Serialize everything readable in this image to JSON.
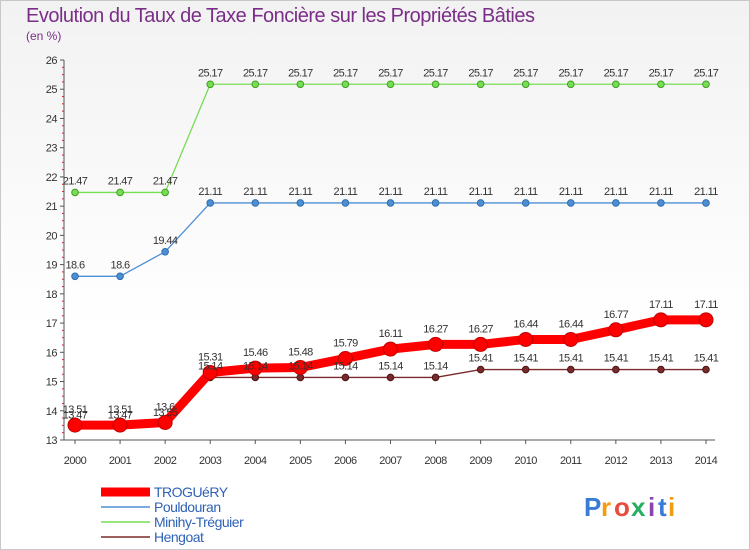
{
  "chart_data": {
    "type": "line",
    "title": "Evolution du Taux de Taxe Foncière sur les Propriétés Bâties",
    "ylabel": "(en %)",
    "xlabel": "",
    "ylim": [
      13,
      26
    ],
    "yticks": [
      "13",
      "14",
      "15",
      "16",
      "17",
      "18",
      "19",
      "20",
      "21",
      "22",
      "23",
      "24",
      "25",
      "26"
    ],
    "categories": [
      "2000",
      "2001",
      "2002",
      "2003",
      "2004",
      "2005",
      "2006",
      "2007",
      "2008",
      "2009",
      "2010",
      "2011",
      "2012",
      "2013",
      "2014"
    ],
    "grid": false,
    "legend": "bottom-left",
    "series": [
      {
        "name": "TROGUéRY",
        "color": "#ff0000",
        "values": [
          13.51,
          13.51,
          13.6,
          15.31,
          15.46,
          15.48,
          15.79,
          16.11,
          16.27,
          16.27,
          16.44,
          16.44,
          16.77,
          17.11,
          17.11
        ],
        "labels": [
          "13.51",
          "13.51",
          "13.6",
          "15.31",
          "15.46",
          "15.48",
          "15.79",
          "16.11",
          "16.27",
          "16.27",
          "16.44",
          "16.44",
          "16.77",
          "17.11",
          "17.11"
        ]
      },
      {
        "name": "Pouldouran",
        "color": "#4e8fd4",
        "values": [
          18.6,
          18.6,
          19.44,
          21.11,
          21.11,
          21.11,
          21.11,
          21.11,
          21.11,
          21.11,
          21.11,
          21.11,
          21.11,
          21.11,
          21.11
        ],
        "labels": [
          "18.6",
          "18.6",
          "19.44",
          "21.11",
          "21.11",
          "21.11",
          "21.11",
          "21.11",
          "21.11",
          "21.11",
          "21.11",
          "21.11",
          "21.11",
          "21.11",
          "21.11"
        ]
      },
      {
        "name": "Minihy-Tréguier",
        "color": "#77dd55",
        "values": [
          21.47,
          21.47,
          21.47,
          25.17,
          25.17,
          25.17,
          25.17,
          25.17,
          25.17,
          25.17,
          25.17,
          25.17,
          25.17,
          25.17,
          25.17
        ],
        "labels": [
          "21.47",
          "21.47",
          "21.47",
          "25.17",
          "25.17",
          "25.17",
          "25.17",
          "25.17",
          "25.17",
          "25.17",
          "25.17",
          "25.17",
          "25.17",
          "25.17",
          "25.17"
        ]
      },
      {
        "name": "Hengoat",
        "color": "#7b2a2a",
        "values": [
          13.47,
          13.47,
          13.55,
          15.14,
          15.14,
          15.14,
          15.14,
          15.14,
          15.14,
          15.41,
          15.41,
          15.41,
          15.41,
          15.41,
          15.41
        ],
        "labels": [
          "13.47",
          "13.47",
          "13.55",
          "15.14",
          "15.14",
          "15.14",
          "15.14",
          "15.14",
          "15.14",
          "15.41",
          "15.41",
          "15.41",
          "15.41",
          "15.41",
          "15.41"
        ]
      }
    ]
  },
  "logo": {
    "text": "Proxiti",
    "letters": [
      "P",
      "r",
      "o",
      "x",
      "i",
      "t",
      "i"
    ],
    "colors": [
      "#3a7bd5",
      "#f39c12",
      "#e74c3c",
      "#27ae60",
      "#8e44ad",
      "#3a7bd5",
      "#f39c12"
    ]
  }
}
